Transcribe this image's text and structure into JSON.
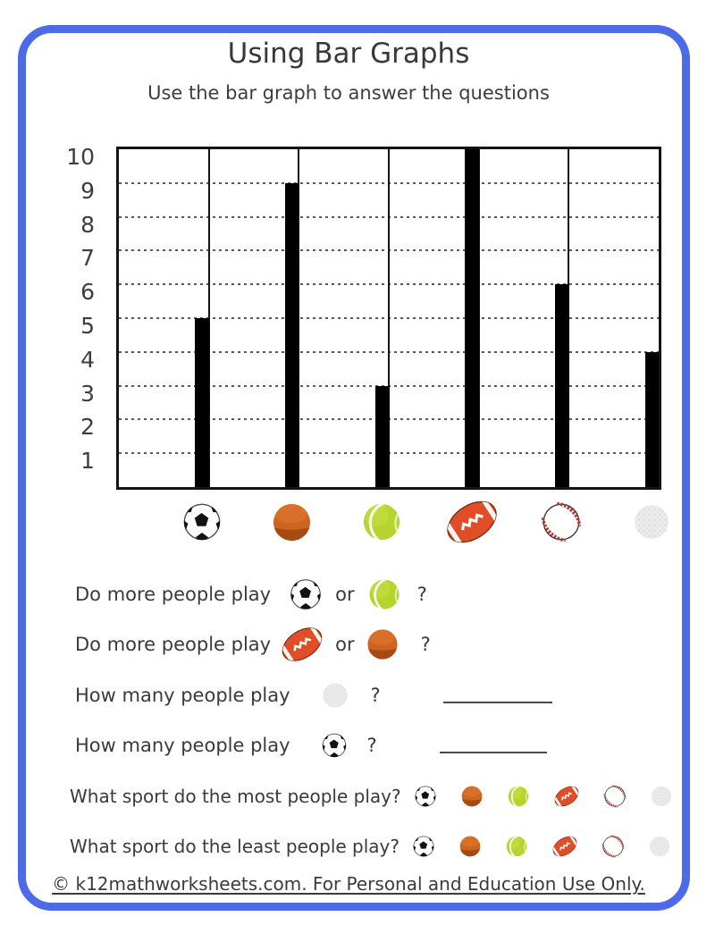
{
  "page": {
    "title": "Using Bar Graphs",
    "subtitle": "Use the bar graph to answer the questions",
    "footer": "© k12mathworksheets.com. For Personal and Education Use Only."
  },
  "chart_data": {
    "type": "bar",
    "title": "",
    "xlabel": "",
    "ylabel": "",
    "categories": [
      "soccer",
      "basketball",
      "tennis",
      "football",
      "baseball",
      "golf"
    ],
    "values": [
      5,
      9,
      3,
      10,
      6,
      4
    ],
    "ylim": [
      0,
      10
    ],
    "yticks": [
      1,
      2,
      3,
      4,
      5,
      6,
      7,
      8,
      9,
      10
    ],
    "grid": "horizontal-dashed",
    "x_labels_are_icons": true,
    "bar_color": "#000000"
  },
  "questions": [
    {
      "text": "Do more people play",
      "icons": [
        "soccer",
        "tennis"
      ],
      "connector": "or",
      "suffix": "?"
    },
    {
      "text": "Do more people play",
      "icons": [
        "football",
        "basketball"
      ],
      "connector": "or",
      "suffix": "?"
    },
    {
      "text": "How many people play",
      "icons": [
        "golf"
      ],
      "suffix": "?",
      "blank": true
    },
    {
      "text": "How many people play",
      "icons": [
        "soccer"
      ],
      "suffix": "?",
      "blank": true
    },
    {
      "text": "What sport do the most people play?",
      "icons": [
        "soccer",
        "basketball",
        "tennis",
        "football",
        "baseball",
        "golf"
      ]
    },
    {
      "text": "What sport do the least people play?",
      "icons": [
        "soccer",
        "basketball",
        "tennis",
        "football",
        "baseball",
        "golf"
      ]
    }
  ],
  "colors": {
    "frame_blue": "#4d6be7",
    "bar_black": "#000000",
    "text_gray": "#3a3a3a"
  }
}
